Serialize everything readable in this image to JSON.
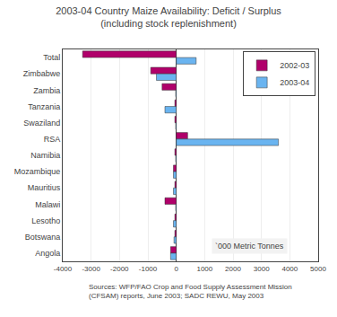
{
  "chart_data": {
    "type": "bar",
    "orientation": "horizontal",
    "title": "2003-04 Country Maize Availability: Deficit / Surplus\n(including stock replenishment)",
    "categories": [
      "Total",
      "Zimbabwe",
      "Zambia",
      "Tanzania",
      "Swaziland",
      "RSA",
      "Namibia",
      "Mozambique",
      "Mauritius",
      "Malawi",
      "Lesotho",
      "Botswana",
      "Angola"
    ],
    "series": [
      {
        "name": "2002-03",
        "color": "#b0006a",
        "values": [
          -3300,
          -900,
          -500,
          -50,
          -50,
          400,
          -50,
          -100,
          -50,
          -400,
          -50,
          -50,
          -200
        ]
      },
      {
        "name": "2003-04",
        "color": "#6ab4f0",
        "values": [
          700,
          -700,
          -20,
          -400,
          -20,
          3600,
          -20,
          -100,
          -100,
          -20,
          -100,
          -80,
          -200
        ]
      }
    ],
    "xlim": [
      -4000,
      5000
    ],
    "xticks": [
      -4000,
      -3000,
      -2000,
      -1000,
      0,
      1000,
      2000,
      3000,
      4000,
      5000
    ],
    "grid": true,
    "legend": "upper right",
    "annotations": [
      "`000 Metric Tonnes",
      "Sources: WFP/FAO Crop and Food Supply Assessment Mission\n(CFSAM) reports, June 2003; SADC REWU, May 2003"
    ]
  }
}
